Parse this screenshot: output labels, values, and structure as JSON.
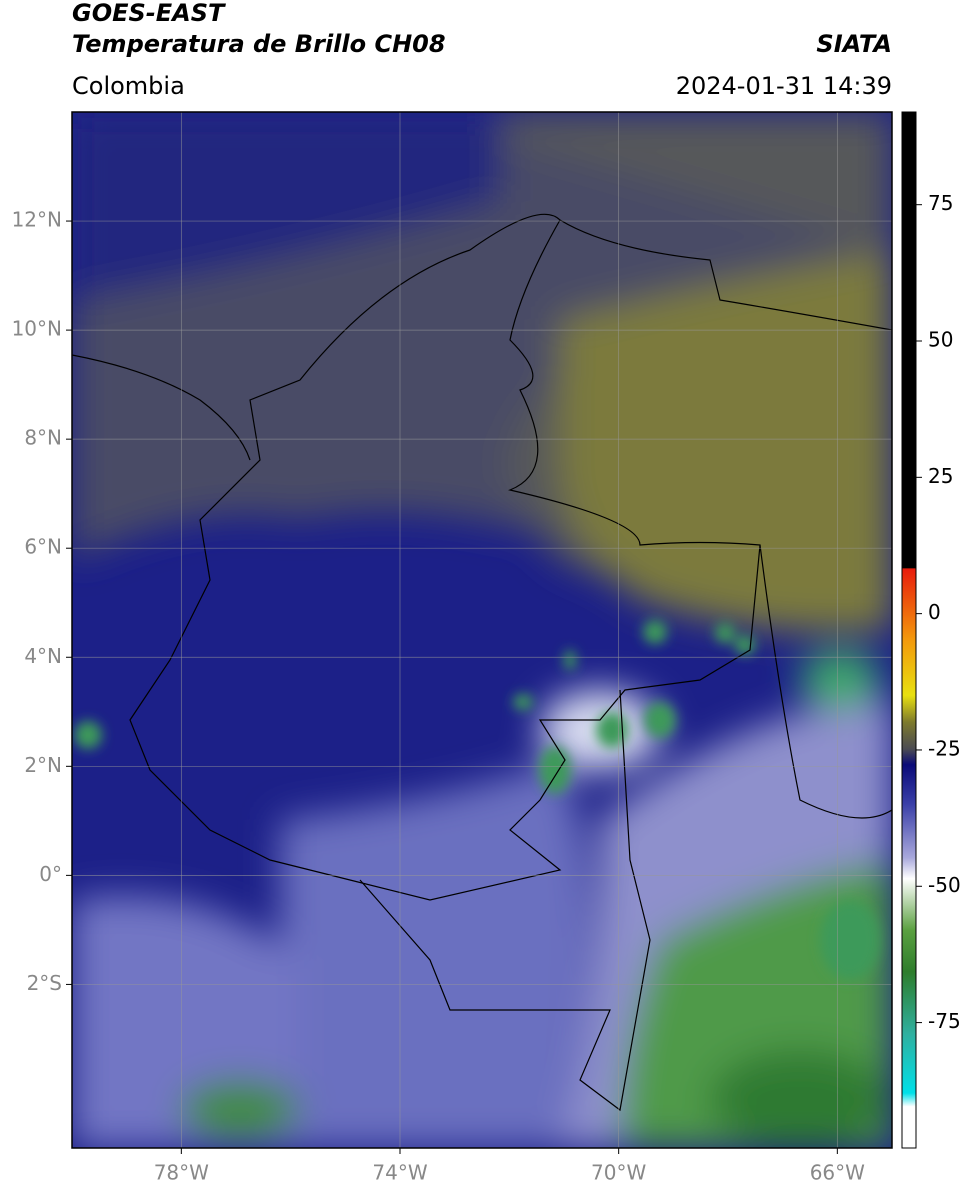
{
  "header": {
    "title": "GOES-EAST",
    "subtitle": "Temperatura de Brillo CH08",
    "source": "SIATA",
    "region": "Colombia",
    "datetime": "2024-01-31 14:39"
  },
  "map": {
    "xlim": [
      -80,
      -65
    ],
    "ylim": [
      -5,
      14
    ],
    "xticks": [
      {
        "value": -78,
        "label": "78°W"
      },
      {
        "value": -74,
        "label": "74°W"
      },
      {
        "value": -70,
        "label": "70°W"
      },
      {
        "value": -66,
        "label": "66°W"
      }
    ],
    "yticks": [
      {
        "value": 12,
        "label": "12°N"
      },
      {
        "value": 10,
        "label": "10°N"
      },
      {
        "value": 8,
        "label": "8°N"
      },
      {
        "value": 6,
        "label": "6°N"
      },
      {
        "value": 4,
        "label": "4°N"
      },
      {
        "value": 2,
        "label": "2°N"
      },
      {
        "value": 0,
        "label": "0°"
      },
      {
        "value": -2,
        "label": "2°S"
      }
    ],
    "grid": true
  },
  "colorbar": {
    "lim": [
      -98,
      92
    ],
    "ticks": [
      75,
      50,
      25,
      0,
      -25,
      -50,
      -75
    ]
  }
}
